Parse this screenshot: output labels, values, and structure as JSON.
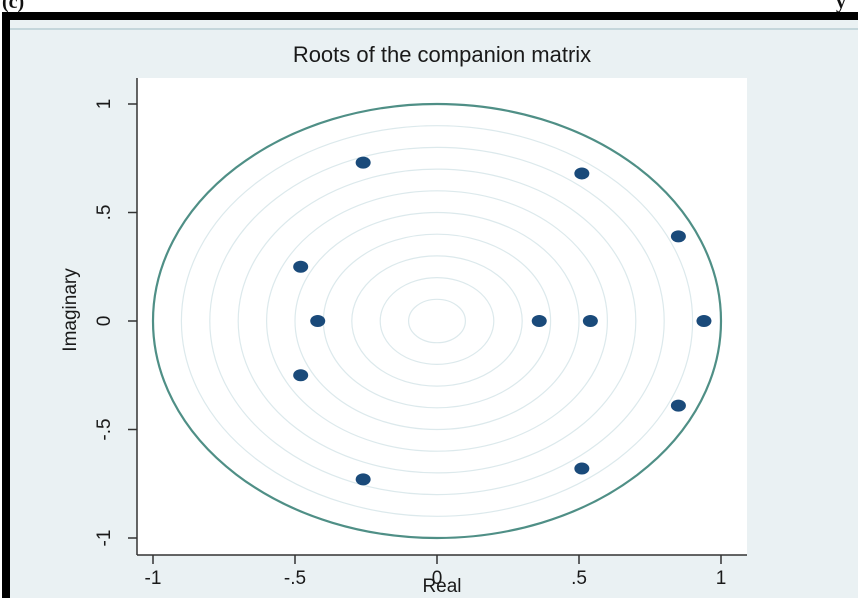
{
  "header": {
    "left_fragment": "(c)",
    "right_fragment": "y"
  },
  "colors": {
    "background": "#eaf1f3",
    "plot_background": "#ffffff",
    "unit_circle": "#4f8f86",
    "grid_circles": "#dce9ec",
    "points": "#1a4a7a",
    "frame": "#000000"
  },
  "chart_data": {
    "type": "scatter",
    "title": "Roots of the companion matrix",
    "xlabel": "Real",
    "ylabel": "Imaginary",
    "xlim": [
      -1.05,
      1.1
    ],
    "ylim": [
      -1.1,
      1.0
    ],
    "x_ticks": [
      -1,
      -0.5,
      0,
      0.5,
      1
    ],
    "x_tick_labels": [
      "-1",
      "-.5",
      "0",
      ".5",
      "1"
    ],
    "y_ticks": [
      -1,
      -0.5,
      0,
      0.5,
      1
    ],
    "y_tick_labels": [
      "-1",
      "-.5",
      "0",
      ".5",
      "1"
    ],
    "unit_circle": true,
    "grid_circles": [
      0.1,
      0.2,
      0.3,
      0.4,
      0.5,
      0.6,
      0.7,
      0.8,
      0.9
    ],
    "points": [
      {
        "x": -0.26,
        "y": 0.73
      },
      {
        "x": 0.51,
        "y": 0.68
      },
      {
        "x": 0.85,
        "y": 0.39
      },
      {
        "x": -0.48,
        "y": 0.25
      },
      {
        "x": -0.42,
        "y": 0.0
      },
      {
        "x": 0.36,
        "y": 0.0
      },
      {
        "x": 0.54,
        "y": 0.0
      },
      {
        "x": 0.94,
        "y": 0.0
      },
      {
        "x": -0.48,
        "y": -0.25
      },
      {
        "x": 0.85,
        "y": -0.39
      },
      {
        "x": -0.26,
        "y": -0.73
      },
      {
        "x": 0.51,
        "y": -0.68
      }
    ]
  }
}
